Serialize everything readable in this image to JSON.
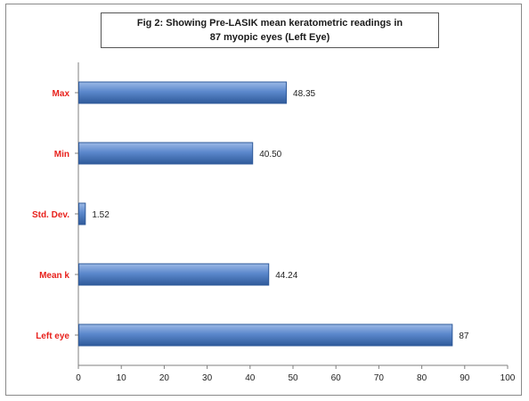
{
  "chart_data": {
    "type": "bar",
    "orientation": "horizontal",
    "title_line1": "Fig 2: Showing Pre-LASIK mean keratometric readings in",
    "title_line2": "87 myopic eyes (Left Eye)",
    "categories": [
      "Max",
      "Min",
      "Std. Dev.",
      "Mean k",
      "Left eye"
    ],
    "values": [
      48.35,
      40.5,
      1.52,
      44.24,
      87
    ],
    "value_labels": [
      "48.35",
      "40.50",
      "1.52",
      "44.24",
      "87"
    ],
    "xlim": [
      0,
      100
    ],
    "x_ticks": [
      0,
      10,
      20,
      30,
      40,
      50,
      60,
      70,
      80,
      90,
      100
    ],
    "grid": false,
    "legend": "none",
    "bar_color": "#4f7ec4",
    "bar_edge_color": "#2f5a9a",
    "category_label_color": "#e8211c"
  }
}
